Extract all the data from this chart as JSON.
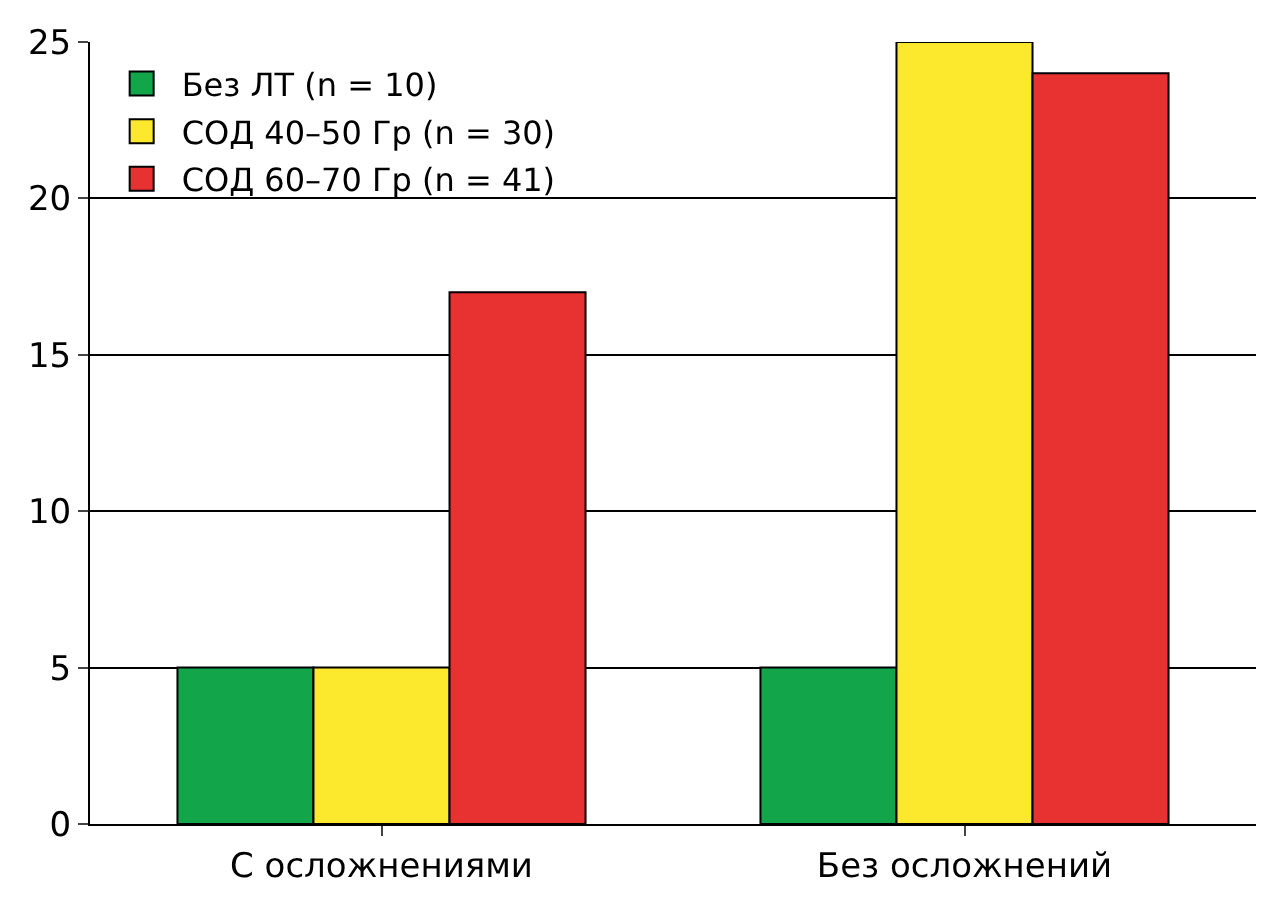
{
  "chart_data": {
    "type": "bar",
    "categories": [
      "С осложнениями",
      "Без осложнений"
    ],
    "series": [
      {
        "name": "Без ЛТ (n = 10)",
        "color": "#12a54a",
        "values": [
          5,
          5
        ]
      },
      {
        "name": "СОД 40–50 Гр (n = 30)",
        "color": "#fce82c",
        "values": [
          5,
          25
        ]
      },
      {
        "name": "СОД 60–70 Гр (n = 41)",
        "color": "#e83131",
        "values": [
          17,
          24
        ]
      }
    ],
    "ylim": [
      0,
      25
    ],
    "yticks": [
      0,
      5,
      10,
      15,
      20,
      25
    ],
    "grid": "y",
    "legend": "top left"
  }
}
